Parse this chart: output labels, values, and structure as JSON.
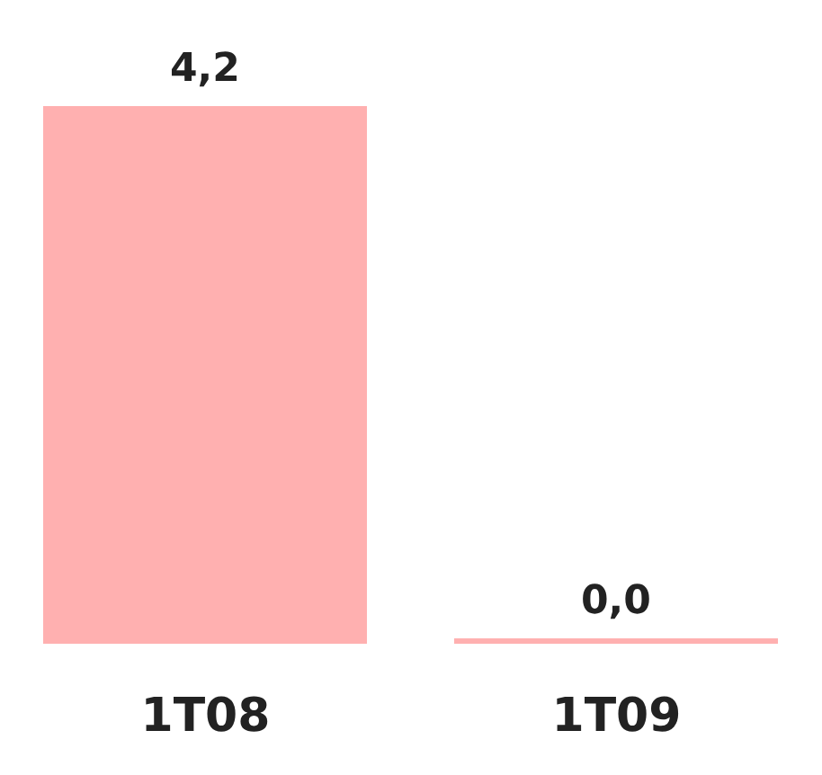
{
  "chart_data": {
    "type": "bar",
    "categories": [
      "1T08",
      "1T09"
    ],
    "values": [
      4.2,
      0.0
    ],
    "color": "#ffb0b0",
    "value_labels": [
      "4,2",
      "0,0"
    ],
    "ylim": [
      0,
      4.2
    ],
    "tick_labels": "x"
  }
}
